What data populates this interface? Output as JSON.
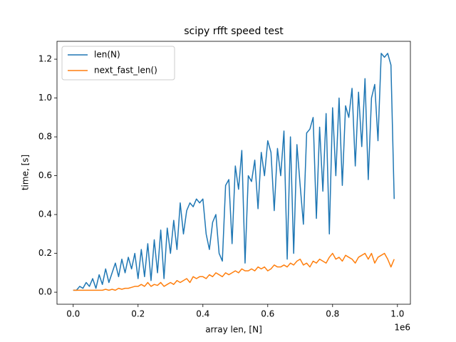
{
  "chart_data": {
    "type": "line",
    "title": "scipy rfft speed test",
    "x_label": "array len, [N]",
    "y_label": "time, [s]",
    "x_offset_label": "1e6",
    "legend": "upper left",
    "grid": false,
    "xlim": [
      -50000,
      1040000
    ],
    "ylim": [
      -0.062,
      1.292
    ],
    "xticks": [
      {
        "value": 0,
        "label": "0.0"
      },
      {
        "value": 200000,
        "label": "0.2"
      },
      {
        "value": 400000,
        "label": "0.4"
      },
      {
        "value": 600000,
        "label": "0.6"
      },
      {
        "value": 800000,
        "label": "0.8"
      },
      {
        "value": 1000000,
        "label": "1.0"
      }
    ],
    "yticks": [
      {
        "value": 0,
        "label": "0.0"
      },
      0.2,
      0.4,
      0.6,
      0.8,
      {
        "value": 1,
        "label": "1.0"
      },
      1.2
    ],
    "x": [
      0,
      10000,
      20000,
      30000,
      40000,
      50000,
      60000,
      70000,
      80000,
      90000,
      100000,
      110000,
      120000,
      130000,
      140000,
      150000,
      160000,
      170000,
      180000,
      190000,
      200000,
      210000,
      220000,
      230000,
      240000,
      250000,
      260000,
      270000,
      280000,
      290000,
      300000,
      310000,
      320000,
      330000,
      340000,
      350000,
      360000,
      370000,
      380000,
      390000,
      400000,
      410000,
      420000,
      430000,
      440000,
      450000,
      460000,
      470000,
      480000,
      490000,
      500000,
      510000,
      520000,
      530000,
      540000,
      550000,
      560000,
      570000,
      580000,
      590000,
      600000,
      610000,
      620000,
      630000,
      640000,
      650000,
      660000,
      670000,
      680000,
      690000,
      700000,
      710000,
      720000,
      730000,
      740000,
      750000,
      760000,
      770000,
      780000,
      790000,
      800000,
      810000,
      820000,
      830000,
      840000,
      850000,
      860000,
      870000,
      880000,
      890000,
      900000,
      910000,
      920000,
      930000,
      940000,
      950000,
      960000,
      970000,
      980000,
      990000
    ],
    "series": [
      {
        "name": "len(N)",
        "color": "#1f77b4",
        "values": [
          0.01,
          0.01,
          0.03,
          0.02,
          0.05,
          0.03,
          0.07,
          0.02,
          0.09,
          0.04,
          0.12,
          0.05,
          0.1,
          0.15,
          0.08,
          0.17,
          0.1,
          0.18,
          0.12,
          0.2,
          0.07,
          0.22,
          0.08,
          0.25,
          0.06,
          0.27,
          0.1,
          0.32,
          0.07,
          0.33,
          0.2,
          0.37,
          0.22,
          0.46,
          0.3,
          0.42,
          0.46,
          0.44,
          0.48,
          0.46,
          0.48,
          0.3,
          0.22,
          0.36,
          0.4,
          0.2,
          0.16,
          0.55,
          0.58,
          0.25,
          0.65,
          0.53,
          0.73,
          0.15,
          0.6,
          0.57,
          0.68,
          0.43,
          0.72,
          0.6,
          0.78,
          0.72,
          0.42,
          0.74,
          0.6,
          0.83,
          0.17,
          0.8,
          0.2,
          0.76,
          0.55,
          0.35,
          0.82,
          0.84,
          0.9,
          0.38,
          0.85,
          0.52,
          0.92,
          0.3,
          0.95,
          0.6,
          1.0,
          0.55,
          0.96,
          0.9,
          1.05,
          0.65,
          1.03,
          0.75,
          1.1,
          0.58,
          1.0,
          1.07,
          0.78,
          1.23,
          1.21,
          1.23,
          1.17,
          0.48
        ]
      },
      {
        "name": "next_fast_len()",
        "color": "#ff7f0e",
        "values": [
          0.01,
          0.01,
          0.01,
          0.01,
          0.01,
          0.01,
          0.01,
          0.01,
          0.01,
          0.01,
          0.015,
          0.01,
          0.015,
          0.01,
          0.02,
          0.015,
          0.02,
          0.02,
          0.025,
          0.03,
          0.03,
          0.04,
          0.03,
          0.05,
          0.03,
          0.04,
          0.035,
          0.05,
          0.03,
          0.04,
          0.05,
          0.04,
          0.06,
          0.05,
          0.06,
          0.07,
          0.05,
          0.08,
          0.07,
          0.08,
          0.08,
          0.07,
          0.09,
          0.08,
          0.1,
          0.09,
          0.08,
          0.1,
          0.09,
          0.1,
          0.11,
          0.1,
          0.12,
          0.11,
          0.11,
          0.12,
          0.11,
          0.13,
          0.12,
          0.13,
          0.11,
          0.12,
          0.14,
          0.13,
          0.13,
          0.14,
          0.13,
          0.15,
          0.14,
          0.16,
          0.17,
          0.14,
          0.15,
          0.13,
          0.16,
          0.15,
          0.17,
          0.16,
          0.15,
          0.18,
          0.2,
          0.17,
          0.18,
          0.16,
          0.19,
          0.18,
          0.17,
          0.15,
          0.18,
          0.19,
          0.2,
          0.17,
          0.2,
          0.15,
          0.18,
          0.19,
          0.2,
          0.17,
          0.13,
          0.17
        ]
      }
    ]
  }
}
